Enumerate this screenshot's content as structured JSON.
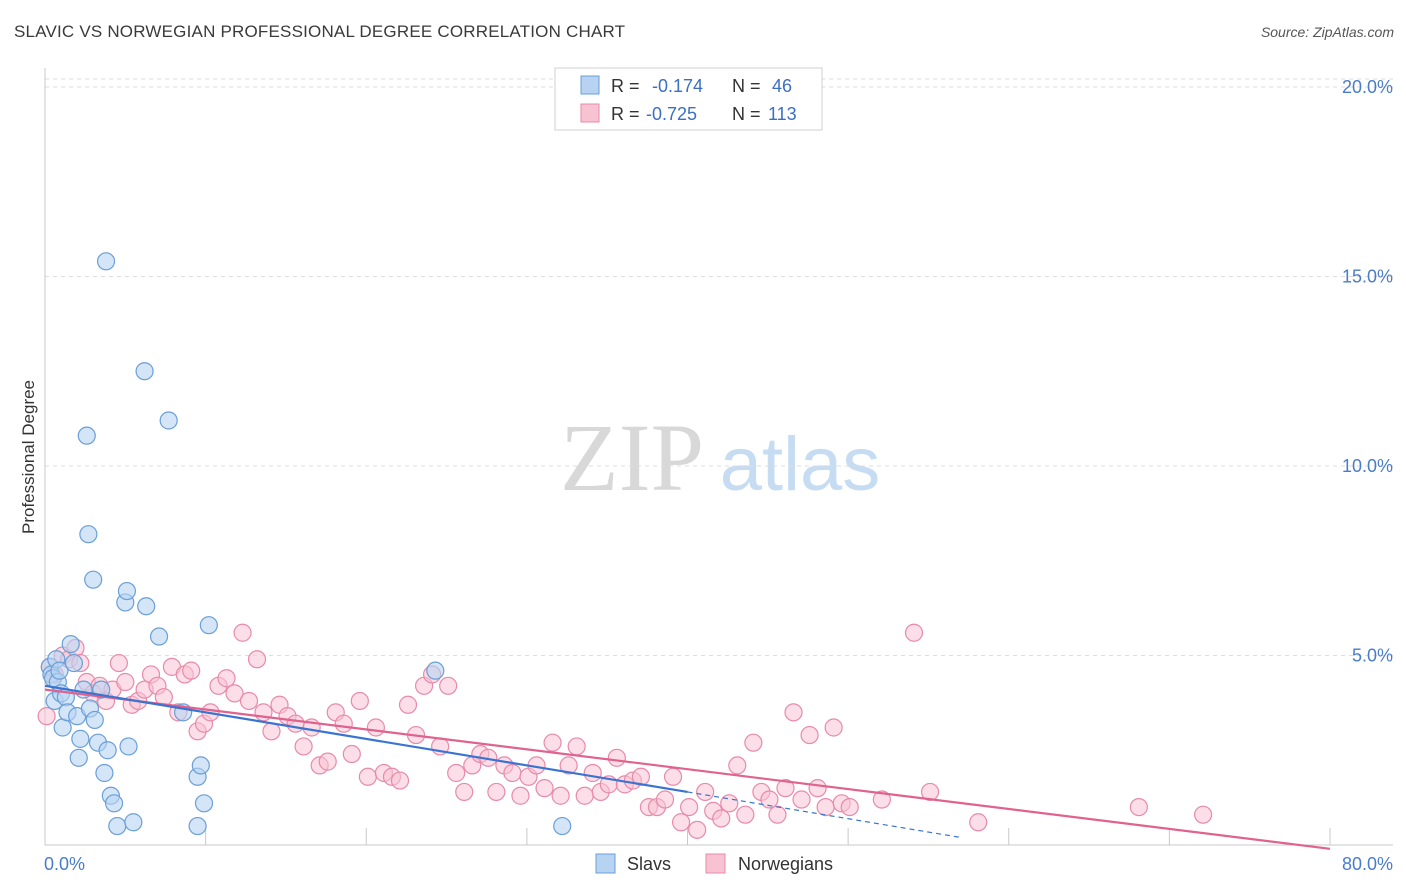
{
  "title": "SLAVIC VS NORWEGIAN PROFESSIONAL DEGREE CORRELATION CHART",
  "source": "Source: ZipAtlas.com",
  "watermark": {
    "zip": "ZIP",
    "atlas": "atlas"
  },
  "colors": {
    "slavs_fill": "#b8d3f2",
    "slavs_stroke": "#6a9fd8",
    "slavs_line": "#3a74d0",
    "norw_fill": "#f7c3d3",
    "norw_stroke": "#e88aaa",
    "norw_line": "#e0628e",
    "tick": "#4a7cc9",
    "grid": "#dddddd"
  },
  "legend_top": [
    {
      "r_label": "R =",
      "r_value": "-0.174",
      "n_label": "N =",
      "n_value": "46"
    },
    {
      "r_label": "R =",
      "r_value": "-0.725",
      "n_label": "N =",
      "n_value": "113"
    }
  ],
  "legend_bottom": [
    "Slavs",
    "Norwegians"
  ],
  "chart_data": {
    "type": "scatter",
    "title": "SLAVIC VS NORWEGIAN PROFESSIONAL DEGREE CORRELATION CHART",
    "xlabel": "",
    "ylabel": "Professional Degree",
    "xlim": [
      0,
      80
    ],
    "ylim": [
      0,
      20.5
    ],
    "x_tick_labels": [
      "0.0%",
      "80.0%"
    ],
    "y_ticks": [
      5,
      10,
      15,
      20
    ],
    "y_tick_labels": [
      "5.0%",
      "10.0%",
      "15.0%",
      "20.0%"
    ],
    "series": [
      {
        "name": "Slavs",
        "R": -0.174,
        "N": 46,
        "trend": {
          "x0": 0,
          "y0": 4.2,
          "x1": 40,
          "y1": 1.4,
          "dashed_to_x": 57,
          "dashed_to_y": 0.2
        },
        "points": [
          [
            0.3,
            4.7
          ],
          [
            0.4,
            4.5
          ],
          [
            0.5,
            4.4
          ],
          [
            0.6,
            3.8
          ],
          [
            0.7,
            4.9
          ],
          [
            0.8,
            4.3
          ],
          [
            0.9,
            4.6
          ],
          [
            1.0,
            4.0
          ],
          [
            1.1,
            3.1
          ],
          [
            1.3,
            3.9
          ],
          [
            1.4,
            3.5
          ],
          [
            1.6,
            5.3
          ],
          [
            1.8,
            4.8
          ],
          [
            2.0,
            3.4
          ],
          [
            2.1,
            2.3
          ],
          [
            2.2,
            2.8
          ],
          [
            2.4,
            4.1
          ],
          [
            2.6,
            10.8
          ],
          [
            2.7,
            8.2
          ],
          [
            2.8,
            3.6
          ],
          [
            3.0,
            7.0
          ],
          [
            3.1,
            3.3
          ],
          [
            3.3,
            2.7
          ],
          [
            3.5,
            4.1
          ],
          [
            3.7,
            1.9
          ],
          [
            3.9,
            2.5
          ],
          [
            4.1,
            1.3
          ],
          [
            4.3,
            1.1
          ],
          [
            4.5,
            0.5
          ],
          [
            5.0,
            6.4
          ],
          [
            5.1,
            6.7
          ],
          [
            5.2,
            2.6
          ],
          [
            5.5,
            0.6
          ],
          [
            3.8,
            15.4
          ],
          [
            6.2,
            12.5
          ],
          [
            6.3,
            6.3
          ],
          [
            7.1,
            5.5
          ],
          [
            7.7,
            11.2
          ],
          [
            8.6,
            3.5
          ],
          [
            9.5,
            1.8
          ],
          [
            9.7,
            2.1
          ],
          [
            9.9,
            1.1
          ],
          [
            9.5,
            0.5
          ],
          [
            10.2,
            5.8
          ],
          [
            24.3,
            4.6
          ],
          [
            32.2,
            0.5
          ]
        ]
      },
      {
        "name": "Norwegians",
        "R": -0.725,
        "N": 113,
        "trend": {
          "x0": 0,
          "y0": 4.1,
          "x1": 80,
          "y1": -0.1
        },
        "points": [
          [
            0.1,
            3.4
          ],
          [
            0.3,
            4.7
          ],
          [
            0.6,
            4.5
          ],
          [
            1.1,
            5.0
          ],
          [
            1.5,
            4.9
          ],
          [
            1.9,
            5.2
          ],
          [
            2.2,
            4.8
          ],
          [
            2.6,
            4.3
          ],
          [
            3.0,
            4.0
          ],
          [
            3.4,
            4.2
          ],
          [
            3.8,
            3.8
          ],
          [
            4.2,
            4.1
          ],
          [
            4.6,
            4.8
          ],
          [
            5.0,
            4.3
          ],
          [
            5.4,
            3.7
          ],
          [
            5.8,
            3.8
          ],
          [
            6.2,
            4.1
          ],
          [
            6.6,
            4.5
          ],
          [
            7.0,
            4.2
          ],
          [
            7.4,
            3.9
          ],
          [
            7.9,
            4.7
          ],
          [
            8.3,
            3.5
          ],
          [
            8.7,
            4.5
          ],
          [
            9.1,
            4.6
          ],
          [
            9.5,
            3.0
          ],
          [
            9.9,
            3.2
          ],
          [
            10.3,
            3.5
          ],
          [
            10.8,
            4.2
          ],
          [
            11.3,
            4.4
          ],
          [
            11.8,
            4.0
          ],
          [
            12.3,
            5.6
          ],
          [
            12.7,
            3.8
          ],
          [
            13.2,
            4.9
          ],
          [
            13.6,
            3.5
          ],
          [
            14.1,
            3.0
          ],
          [
            14.6,
            3.7
          ],
          [
            15.1,
            3.4
          ],
          [
            15.6,
            3.2
          ],
          [
            16.1,
            2.6
          ],
          [
            16.6,
            3.1
          ],
          [
            17.1,
            2.1
          ],
          [
            17.6,
            2.2
          ],
          [
            18.1,
            3.5
          ],
          [
            18.6,
            3.2
          ],
          [
            19.1,
            2.4
          ],
          [
            19.6,
            3.8
          ],
          [
            20.1,
            1.8
          ],
          [
            20.6,
            3.1
          ],
          [
            21.1,
            1.9
          ],
          [
            21.6,
            1.8
          ],
          [
            22.1,
            1.7
          ],
          [
            22.6,
            3.7
          ],
          [
            23.1,
            2.9
          ],
          [
            23.6,
            4.2
          ],
          [
            24.1,
            4.5
          ],
          [
            24.6,
            2.6
          ],
          [
            25.1,
            4.2
          ],
          [
            25.6,
            1.9
          ],
          [
            26.1,
            1.4
          ],
          [
            26.6,
            2.1
          ],
          [
            27.1,
            2.4
          ],
          [
            27.6,
            2.3
          ],
          [
            28.1,
            1.4
          ],
          [
            28.6,
            2.1
          ],
          [
            29.1,
            1.9
          ],
          [
            29.6,
            1.3
          ],
          [
            30.1,
            1.8
          ],
          [
            30.6,
            2.1
          ],
          [
            31.1,
            1.5
          ],
          [
            31.6,
            2.7
          ],
          [
            32.1,
            1.3
          ],
          [
            32.6,
            2.1
          ],
          [
            33.1,
            2.6
          ],
          [
            33.6,
            1.3
          ],
          [
            34.1,
            1.9
          ],
          [
            34.6,
            1.4
          ],
          [
            35.1,
            1.6
          ],
          [
            35.6,
            2.3
          ],
          [
            36.1,
            1.6
          ],
          [
            36.6,
            1.7
          ],
          [
            37.1,
            1.8
          ],
          [
            37.6,
            1.0
          ],
          [
            38.1,
            1.0
          ],
          [
            38.6,
            1.2
          ],
          [
            39.1,
            1.8
          ],
          [
            39.6,
            0.6
          ],
          [
            40.1,
            1.0
          ],
          [
            40.6,
            0.4
          ],
          [
            41.1,
            1.4
          ],
          [
            41.6,
            0.9
          ],
          [
            42.1,
            0.7
          ],
          [
            42.6,
            1.1
          ],
          [
            43.1,
            2.1
          ],
          [
            43.6,
            0.8
          ],
          [
            44.1,
            2.7
          ],
          [
            44.6,
            1.4
          ],
          [
            45.1,
            1.2
          ],
          [
            45.6,
            0.8
          ],
          [
            46.1,
            1.5
          ],
          [
            46.6,
            3.5
          ],
          [
            47.1,
            1.2
          ],
          [
            47.6,
            2.9
          ],
          [
            48.1,
            1.5
          ],
          [
            48.6,
            1.0
          ],
          [
            49.1,
            3.1
          ],
          [
            49.6,
            1.1
          ],
          [
            50.1,
            1.0
          ],
          [
            52.1,
            1.2
          ],
          [
            54.1,
            5.6
          ],
          [
            55.1,
            1.4
          ],
          [
            58.1,
            0.6
          ],
          [
            68.1,
            1.0
          ],
          [
            72.1,
            0.8
          ]
        ]
      }
    ]
  }
}
